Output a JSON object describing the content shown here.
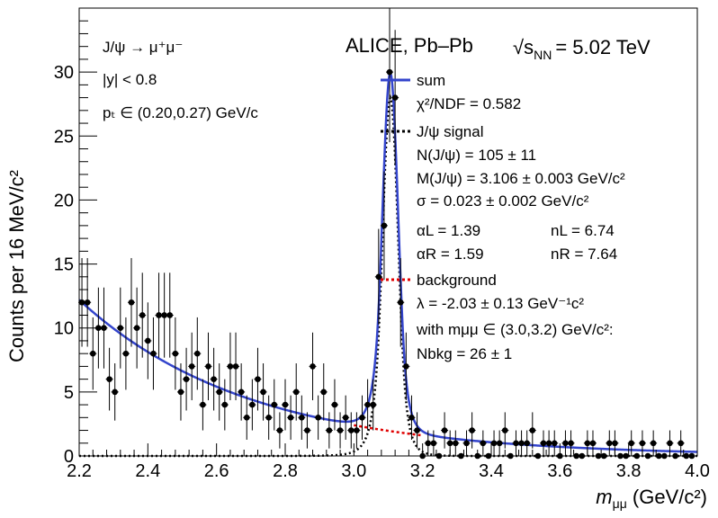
{
  "chart_data": {
    "type": "scatter",
    "experiment_label": "ALICE, Pb–Pb",
    "energy_label_prefix": "√s",
    "energy_label_sub": "NN",
    "energy_label_value": "= 5.02 TeV",
    "xlabel": "m",
    "xlabel_sub": "μμ",
    "xlabel_unit": " (GeV/c²)",
    "ylabel": "Counts per 16 MeV/c²",
    "xlim": [
      2.2,
      4.0
    ],
    "ylim": [
      0,
      35
    ],
    "x_ticks": [
      "2.2",
      "2.4",
      "2.6",
      "2.8",
      "3.0",
      "3.2",
      "3.4",
      "3.6",
      "3.8",
      "4.0"
    ],
    "y_ticks": [
      "0",
      "5",
      "10",
      "15",
      "20",
      "25",
      "30"
    ],
    "info_lines": [
      "J/ψ → μ⁺μ⁻",
      "|y| < 0.8",
      "pₜ ∈ (0.20,0.27) GeV/c"
    ],
    "legend": {
      "sum_label": "sum",
      "chi2": "χ²/NDF = 0.582",
      "signal_label": "J/ψ signal",
      "signal_params": [
        "N(J/ψ) = 105 ± 11",
        "M(J/ψ) = 3.106 ± 0.003 GeV/c²",
        "σ = 0.023 ± 0.002 GeV/c²"
      ],
      "alpha_L": "αL = 1.39",
      "n_L": "nL = 6.74",
      "alpha_R": "αR = 1.59",
      "n_R": "nR = 7.64",
      "background_label": "background",
      "bkg_params": [
        "λ = -2.03 ± 0.13 GeV⁻¹c²",
        "with mμμ ∈ (3.0,3.2) GeV/c²:",
        "Nbkg = 26 ± 1"
      ]
    },
    "colors": {
      "sum": "#3344cc",
      "signal": "#000000",
      "background": "#e00000",
      "points": "#000000"
    },
    "fit": {
      "bkg_amplitude": 12.2,
      "bkg_lambda": 2.03,
      "bkg_x0": 2.2,
      "signal_mean": 3.106,
      "signal_sigma": 0.023,
      "signal_peak": 28.0,
      "alpha_L": 1.39,
      "n_L": 6.74,
      "alpha_R": 1.59,
      "n_R": 7.64
    },
    "points": [
      [
        2.208,
        12
      ],
      [
        2.224,
        12
      ],
      [
        2.24,
        8
      ],
      [
        2.256,
        10
      ],
      [
        2.272,
        10
      ],
      [
        2.288,
        6
      ],
      [
        2.304,
        5
      ],
      [
        2.32,
        10
      ],
      [
        2.336,
        8
      ],
      [
        2.352,
        12
      ],
      [
        2.368,
        10
      ],
      [
        2.384,
        11
      ],
      [
        2.4,
        9
      ],
      [
        2.416,
        8
      ],
      [
        2.432,
        11
      ],
      [
        2.448,
        11
      ],
      [
        2.464,
        11
      ],
      [
        2.48,
        8
      ],
      [
        2.496,
        5
      ],
      [
        2.512,
        6
      ],
      [
        2.528,
        7
      ],
      [
        2.544,
        8
      ],
      [
        2.56,
        4
      ],
      [
        2.576,
        7
      ],
      [
        2.592,
        6
      ],
      [
        2.608,
        5
      ],
      [
        2.624,
        4
      ],
      [
        2.64,
        7
      ],
      [
        2.656,
        7
      ],
      [
        2.672,
        5
      ],
      [
        2.688,
        3
      ],
      [
        2.704,
        4
      ],
      [
        2.72,
        6
      ],
      [
        2.736,
        5
      ],
      [
        2.752,
        3
      ],
      [
        2.768,
        4
      ],
      [
        2.784,
        2
      ],
      [
        2.8,
        4
      ],
      [
        2.816,
        3
      ],
      [
        2.832,
        5
      ],
      [
        2.848,
        3
      ],
      [
        2.864,
        2
      ],
      [
        2.88,
        7
      ],
      [
        2.896,
        3
      ],
      [
        2.912,
        5
      ],
      [
        2.928,
        2
      ],
      [
        2.944,
        4
      ],
      [
        2.96,
        2
      ],
      [
        2.976,
        3
      ],
      [
        2.992,
        2
      ],
      [
        3.008,
        2
      ],
      [
        3.024,
        3
      ],
      [
        3.04,
        4
      ],
      [
        3.056,
        4
      ],
      [
        3.072,
        14
      ],
      [
        3.088,
        18
      ],
      [
        3.104,
        30
      ],
      [
        3.12,
        28
      ],
      [
        3.136,
        12
      ],
      [
        3.152,
        7
      ],
      [
        3.168,
        3
      ],
      [
        3.184,
        2
      ],
      [
        3.2,
        0
      ],
      [
        3.216,
        1
      ],
      [
        3.232,
        1
      ],
      [
        3.248,
        0
      ],
      [
        3.264,
        2
      ],
      [
        3.28,
        1
      ],
      [
        3.296,
        1
      ],
      [
        3.312,
        0
      ],
      [
        3.328,
        1
      ],
      [
        3.344,
        2
      ],
      [
        3.36,
        0
      ],
      [
        3.376,
        1
      ],
      [
        3.392,
        0
      ],
      [
        3.408,
        1
      ],
      [
        3.424,
        1
      ],
      [
        3.44,
        2
      ],
      [
        3.456,
        0
      ],
      [
        3.472,
        1
      ],
      [
        3.488,
        1
      ],
      [
        3.504,
        1
      ],
      [
        3.52,
        2
      ],
      [
        3.536,
        0
      ],
      [
        3.552,
        1
      ],
      [
        3.568,
        1
      ],
      [
        3.584,
        1
      ],
      [
        3.6,
        0
      ],
      [
        3.616,
        1
      ],
      [
        3.632,
        1
      ],
      [
        3.648,
        0
      ],
      [
        3.664,
        0
      ],
      [
        3.68,
        1
      ],
      [
        3.696,
        1
      ],
      [
        3.712,
        0
      ],
      [
        3.728,
        0
      ],
      [
        3.744,
        1
      ],
      [
        3.76,
        1
      ],
      [
        3.776,
        0
      ],
      [
        3.792,
        0
      ],
      [
        3.808,
        1
      ],
      [
        3.824,
        0
      ],
      [
        3.84,
        1
      ],
      [
        3.856,
        0
      ],
      [
        3.872,
        1
      ],
      [
        3.888,
        0
      ],
      [
        3.904,
        0
      ],
      [
        3.92,
        1
      ],
      [
        3.936,
        0
      ],
      [
        3.952,
        1
      ],
      [
        3.968,
        0
      ],
      [
        3.984,
        0
      ]
    ]
  }
}
